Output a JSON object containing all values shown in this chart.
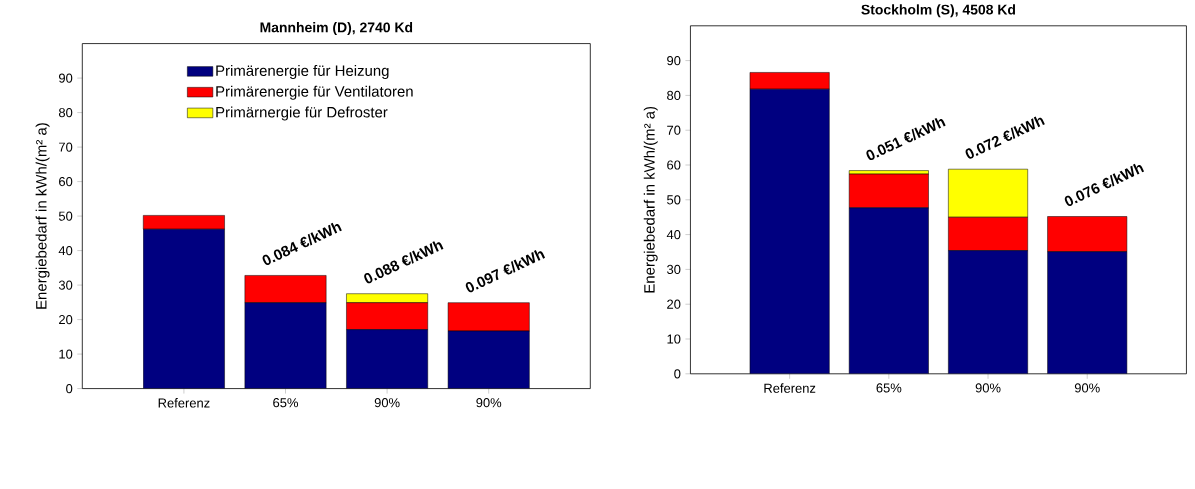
{
  "chart_data": [
    {
      "type": "bar",
      "stacked": true,
      "title": "Mannheim (D), 2740 Kd",
      "ylabel": "Energiebedarf in kWh/(m² a)",
      "categories": [
        "Referenz",
        "65%",
        "90%",
        "90%"
      ],
      "ylim": [
        0,
        100
      ],
      "yticks": [
        0,
        10,
        20,
        30,
        40,
        50,
        60,
        70,
        80,
        90
      ],
      "legend": "top",
      "series": [
        {
          "name": "Primärenergie für Heizung",
          "color": "#000080",
          "values": [
            46.2,
            24.9,
            17.1,
            16.7
          ]
        },
        {
          "name": "Primärenergie für Ventilatoren",
          "color": "#ff0000",
          "values": [
            4.0,
            7.9,
            7.8,
            8.2
          ]
        },
        {
          "name": "Primärnergie für Defroster",
          "color": "#ffff00",
          "values": [
            0,
            0,
            2.6,
            0
          ]
        }
      ],
      "annotations": [
        "0.084 €/kWh",
        "0.088 €/kWh",
        "0.097 €/kWh"
      ]
    },
    {
      "type": "bar",
      "stacked": true,
      "title": "Stockholm (S), 4508 Kd",
      "ylabel": "Energiebedarf in kWh/(m² a)",
      "categories": [
        "Referenz",
        "65%",
        "90%",
        "90%"
      ],
      "ylim": [
        0,
        100
      ],
      "yticks": [
        0,
        10,
        20,
        30,
        40,
        50,
        60,
        70,
        80,
        90
      ],
      "legend": false,
      "series": [
        {
          "color": "#000080",
          "values": [
            81.8,
            47.7,
            35.4,
            35.1
          ]
        },
        {
          "color": "#ff0000",
          "values": [
            4.8,
            9.7,
            9.6,
            10.1
          ]
        },
        {
          "color": "#ffff00",
          "values": [
            0,
            1.0,
            13.8,
            0
          ]
        }
      ],
      "annotations": [
        "0.051 €/kWh",
        "0.072 €/kWh",
        "0.076 €/kWh"
      ]
    }
  ]
}
